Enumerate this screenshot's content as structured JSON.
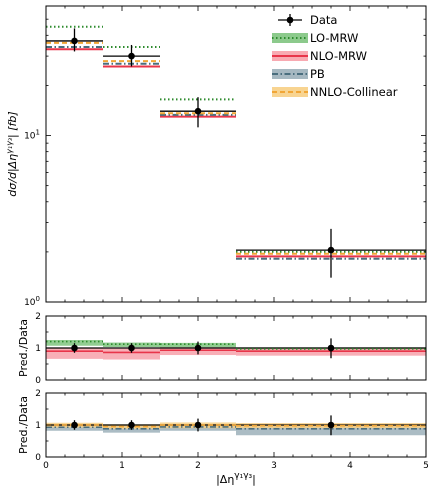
{
  "chart_data": [
    {
      "type": "bar",
      "panel": "main",
      "bins": [
        [
          0,
          0.75
        ],
        [
          0.75,
          1.5
        ],
        [
          1.5,
          2.5
        ],
        [
          2.5,
          5
        ]
      ],
      "ylabel": "dσ/d|Δη^{γ1γ3}| [fb]",
      "yscale": "log",
      "ylim": [
        1,
        60
      ],
      "xlim": [
        0,
        5
      ],
      "yticks": [
        {
          "value": 1,
          "base": "10",
          "exp": "0"
        },
        {
          "value": 10,
          "base": "10",
          "exp": "1"
        }
      ],
      "legend_position": "top-right",
      "data": {
        "name": "Data",
        "x": [
          0.375,
          1.125,
          2.0,
          3.75
        ],
        "y": [
          37,
          30,
          14,
          2.05
        ],
        "yerr_low": [
          32,
          26,
          11.2,
          1.4
        ],
        "yerr_high": [
          44,
          35,
          17,
          2.75
        ]
      },
      "series": [
        {
          "name": "LO-MRW",
          "color": "#2e8b2e",
          "band_color": "#7fc47f",
          "style": "dotted",
          "values": [
            45,
            34,
            16.5,
            2.0
          ]
        },
        {
          "name": "NLO-MRW",
          "color": "#e8354a",
          "band_color": "#f7a1aa",
          "style": "solid",
          "values": [
            33,
            26,
            13,
            1.88
          ]
        },
        {
          "name": "PB",
          "color": "#4a6e7e",
          "band_color": "#9cb0ba",
          "style": "dashdot",
          "values": [
            34,
            27,
            13.3,
            1.82
          ]
        },
        {
          "name": "NNLO-Collinear",
          "color": "#f1a636",
          "band_color": "#f7cf85",
          "style": "dashed",
          "values": [
            36,
            28,
            13.6,
            1.95
          ]
        }
      ]
    },
    {
      "type": "bar",
      "panel": "ratio-1",
      "ylabel": "Pred./Data",
      "ylim": [
        0,
        2
      ],
      "yticks": [
        "0",
        "1",
        "2"
      ],
      "data_ratio": {
        "y": [
          1,
          1,
          1,
          1
        ],
        "err_low": [
          0.85,
          0.85,
          0.8,
          0.68
        ],
        "err_high": [
          1.15,
          1.15,
          1.2,
          1.3
        ]
      },
      "series": [
        {
          "name": "LO-MRW",
          "values": [
            1.2,
            1.12,
            1.12,
            0.97
          ],
          "band": [
            [
              1.07,
              1.25
            ],
            [
              1.03,
              1.17
            ],
            [
              1.02,
              1.16
            ],
            [
              0.9,
              1.02
            ]
          ]
        },
        {
          "name": "NLO-MRW",
          "values": [
            0.9,
            0.86,
            0.93,
            0.9
          ],
          "band": [
            [
              0.66,
              1.0
            ],
            [
              0.64,
              0.98
            ],
            [
              0.78,
              1.02
            ],
            [
              0.76,
              0.98
            ]
          ]
        }
      ]
    },
    {
      "type": "bar",
      "panel": "ratio-2",
      "ylabel": "Pred./Data",
      "ylim": [
        0,
        2
      ],
      "yticks": [
        "0",
        "1",
        "2"
      ],
      "xlabel": "|Δη^{γ1γ3}|",
      "xticks": [
        "0",
        "1",
        "2",
        "3",
        "4",
        "5"
      ],
      "data_ratio": {
        "y": [
          1,
          1,
          1,
          1
        ],
        "err_low": [
          0.85,
          0.85,
          0.8,
          0.68
        ],
        "err_high": [
          1.15,
          1.15,
          1.2,
          1.3
        ]
      },
      "series": [
        {
          "name": "PB",
          "values": [
            0.93,
            0.88,
            0.94,
            0.88
          ],
          "band": [
            [
              0.82,
              1.02
            ],
            [
              0.76,
              0.97
            ],
            [
              0.82,
              1.02
            ],
            [
              0.68,
              0.96
            ]
          ]
        },
        {
          "name": "NNLO-Collinear",
          "values": [
            1.0,
            0.95,
            1.0,
            0.98
          ],
          "band": [
            [
              0.92,
              1.07
            ],
            [
              0.88,
              1.02
            ],
            [
              0.9,
              1.08
            ],
            [
              0.9,
              1.06
            ]
          ]
        }
      ]
    }
  ]
}
